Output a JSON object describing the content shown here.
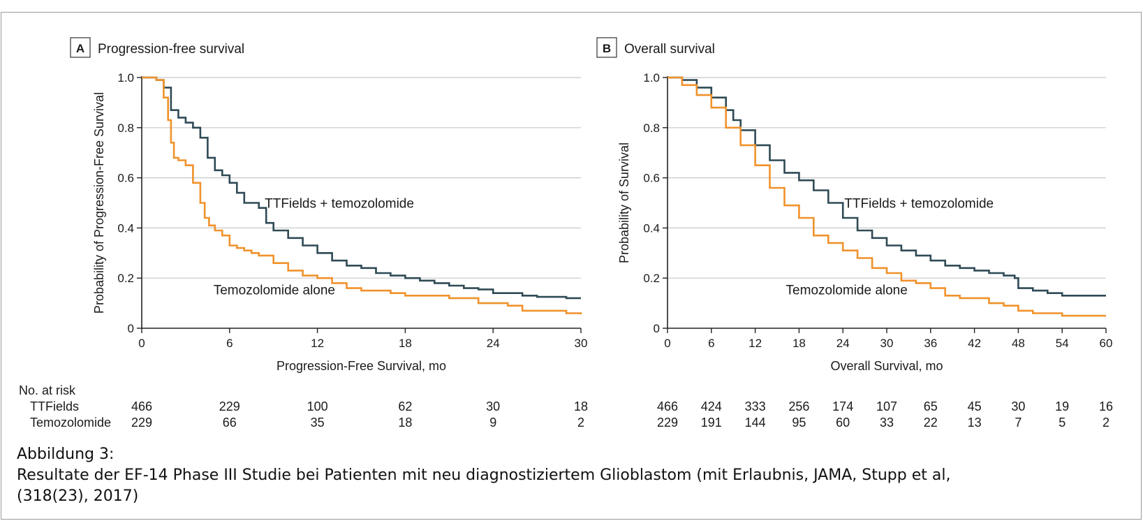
{
  "chart_data": [
    {
      "type": "line",
      "panel_letter": "A",
      "title": "Progression-free survival",
      "xlabel": "Progression-Free Survival, mo",
      "ylabel": "Probability of Progression-Free Survival",
      "xlim": [
        0,
        30
      ],
      "ylim": [
        0,
        1.0
      ],
      "xticks": [
        0,
        6,
        12,
        18,
        24,
        30
      ],
      "yticks": [
        0,
        0.2,
        0.4,
        0.6,
        0.8,
        1.0
      ],
      "ytick_labels": [
        "0",
        "0.2",
        "0.4",
        "0.6",
        "0.8",
        "1.0"
      ],
      "grid": "horizontal",
      "series": [
        {
          "name": "TTFields + temozolomide",
          "color": "#2f4a55",
          "x": [
            0,
            1,
            1.5,
            2,
            2.5,
            3,
            3.5,
            4,
            4.5,
            5,
            5.5,
            6,
            6.5,
            7,
            7.5,
            8,
            8.5,
            9,
            10,
            11,
            12,
            13,
            14,
            15,
            16,
            17,
            18,
            19,
            20,
            21,
            22,
            23,
            24,
            25,
            26,
            27,
            28,
            29,
            30
          ],
          "y": [
            1.0,
            0.99,
            0.96,
            0.87,
            0.84,
            0.82,
            0.8,
            0.76,
            0.68,
            0.63,
            0.61,
            0.58,
            0.54,
            0.5,
            0.5,
            0.48,
            0.42,
            0.39,
            0.36,
            0.33,
            0.3,
            0.27,
            0.25,
            0.24,
            0.22,
            0.21,
            0.2,
            0.19,
            0.18,
            0.17,
            0.16,
            0.155,
            0.14,
            0.14,
            0.13,
            0.125,
            0.125,
            0.12,
            0.12
          ]
        },
        {
          "name": "Temozolomide alone",
          "color": "#f0922b",
          "x": [
            0,
            1,
            1.5,
            1.8,
            2,
            2.2,
            2.5,
            3,
            3.5,
            4,
            4.3,
            4.6,
            5,
            5.5,
            6,
            6.5,
            7,
            7.5,
            8,
            9,
            10,
            11,
            12,
            13,
            14,
            15,
            16,
            17,
            18,
            19,
            20,
            21,
            22,
            23,
            24,
            25,
            26,
            27,
            28,
            29,
            30
          ],
          "y": [
            1.0,
            0.99,
            0.92,
            0.83,
            0.74,
            0.68,
            0.67,
            0.65,
            0.58,
            0.5,
            0.44,
            0.41,
            0.39,
            0.37,
            0.33,
            0.32,
            0.31,
            0.3,
            0.29,
            0.26,
            0.23,
            0.21,
            0.2,
            0.18,
            0.16,
            0.15,
            0.15,
            0.14,
            0.13,
            0.13,
            0.13,
            0.12,
            0.12,
            0.1,
            0.1,
            0.09,
            0.07,
            0.07,
            0.07,
            0.06,
            0.055
          ]
        }
      ],
      "annotations": [
        {
          "text": "TTFields + temozolomide",
          "x": 8.4,
          "y": 0.48
        },
        {
          "text": "Temozolomide alone",
          "x": 4.9,
          "y": 0.135
        }
      ],
      "risk_table": {
        "header": "No. at risk",
        "rows": [
          {
            "label": "TTFields",
            "values": [
              "466",
              "229",
              "100",
              "62",
              "30",
              "18"
            ]
          },
          {
            "label": "Temozolomide",
            "values": [
              "229",
              "66",
              "35",
              "18",
              "9",
              "2"
            ]
          }
        ]
      }
    },
    {
      "type": "line",
      "panel_letter": "B",
      "title": "Overall survival",
      "xlabel": "Overall Survival, mo",
      "ylabel": "Probability of Survival",
      "xlim": [
        0,
        60
      ],
      "ylim": [
        0,
        1.0
      ],
      "xticks": [
        0,
        6,
        12,
        18,
        24,
        30,
        36,
        42,
        48,
        54,
        60
      ],
      "yticks": [
        0,
        0.2,
        0.4,
        0.6,
        0.8,
        1.0
      ],
      "ytick_labels": [
        "0",
        "0.2",
        "0.4",
        "0.6",
        "0.8",
        "1.0"
      ],
      "grid": "horizontal",
      "series": [
        {
          "name": "TTFields + temozolomide",
          "color": "#2f4a55",
          "x": [
            0,
            2,
            4,
            6,
            8,
            9,
            10,
            12,
            14,
            16,
            18,
            20,
            22,
            24,
            26,
            28,
            30,
            32,
            34,
            36,
            38,
            40,
            42,
            44,
            46,
            47.5,
            48,
            50,
            52,
            54,
            56,
            58,
            60
          ],
          "y": [
            1.0,
            0.99,
            0.96,
            0.92,
            0.87,
            0.83,
            0.79,
            0.73,
            0.67,
            0.62,
            0.59,
            0.55,
            0.5,
            0.44,
            0.39,
            0.36,
            0.33,
            0.31,
            0.29,
            0.27,
            0.25,
            0.24,
            0.23,
            0.22,
            0.21,
            0.2,
            0.16,
            0.15,
            0.14,
            0.13,
            0.13,
            0.13,
            0.13
          ]
        },
        {
          "name": "Temozolomide alone",
          "color": "#f0922b",
          "x": [
            0,
            2,
            4,
            6,
            8,
            10,
            12,
            14,
            16,
            18,
            20,
            22,
            24,
            26,
            28,
            30,
            32,
            34,
            36,
            38,
            40,
            42,
            44,
            46,
            48,
            50,
            52,
            54,
            56,
            58,
            60
          ],
          "y": [
            1.0,
            0.97,
            0.93,
            0.88,
            0.8,
            0.73,
            0.65,
            0.56,
            0.49,
            0.44,
            0.37,
            0.34,
            0.31,
            0.28,
            0.24,
            0.22,
            0.19,
            0.18,
            0.16,
            0.13,
            0.12,
            0.12,
            0.1,
            0.09,
            0.07,
            0.06,
            0.06,
            0.05,
            0.05,
            0.05,
            0.05
          ]
        }
      ],
      "annotations": [
        {
          "text": "TTFields + temozolomide",
          "x": 24.2,
          "y": 0.48
        },
        {
          "text": "Temozolomide alone",
          "x": 16.2,
          "y": 0.135
        }
      ],
      "risk_table": {
        "rows": [
          {
            "label": "",
            "values": [
              "466",
              "424",
              "333",
              "256",
              "174",
              "107",
              "65",
              "45",
              "30",
              "19",
              "16"
            ]
          },
          {
            "label": "",
            "values": [
              "229",
              "191",
              "144",
              "95",
              "60",
              "33",
              "22",
              "13",
              "7",
              "5",
              "2"
            ]
          }
        ]
      }
    }
  ],
  "caption": {
    "line1": "Abbildung 3:",
    "line2": "Resultate der EF-14 Phase III Studie bei Patienten mit neu diagnostiziertem Glioblastom (mit Erlaubnis, JAMA, Stupp et al,",
    "line3": "(318(23), 2017)"
  }
}
